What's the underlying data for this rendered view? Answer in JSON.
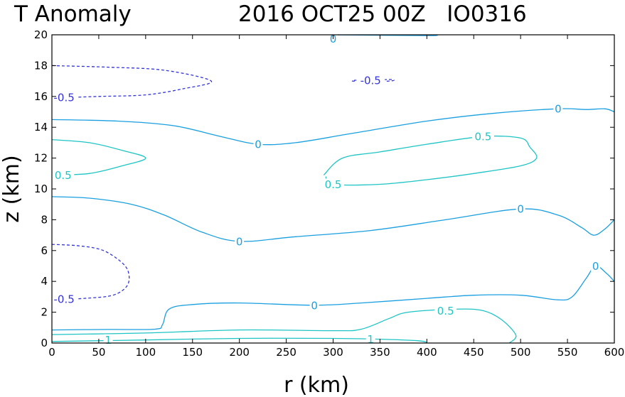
{
  "chart_data": {
    "type": "contour",
    "title_left": "T Anomaly",
    "title_right": "2016 OCT25 00Z   IO0316",
    "xlabel": "r (km)",
    "ylabel": "z (km)",
    "xlim": [
      0,
      600
    ],
    "ylim": [
      0,
      20
    ],
    "xticks": [
      0,
      50,
      100,
      150,
      200,
      250,
      300,
      350,
      400,
      450,
      500,
      550,
      600
    ],
    "yticks": [
      0,
      2,
      4,
      6,
      8,
      10,
      12,
      14,
      16,
      18,
      20
    ],
    "xtick_labels": [
      "0",
      "50",
      "100",
      "150",
      "200",
      "250",
      "300",
      "350",
      "400",
      "450",
      "500",
      "550",
      "600"
    ],
    "ytick_labels": [
      "0",
      "2",
      "4",
      "6",
      "8",
      "10",
      "12",
      "14",
      "16",
      "18",
      "20"
    ],
    "grid": false,
    "colors": {
      "neg": "#3333dd",
      "zero": "#1a9fe0",
      "pos": "#1fc4c4",
      "axis": "#000000"
    },
    "contours": [
      {
        "level": -0.5,
        "style": "dashed",
        "points": [
          [
            0,
            18.0
          ],
          [
            60,
            17.9
          ],
          [
            120,
            17.7
          ],
          [
            170,
            17.0
          ],
          [
            140,
            16.5
          ],
          [
            100,
            16.1
          ],
          [
            50,
            16.0
          ],
          [
            0,
            15.9
          ]
        ]
      },
      {
        "level": -0.5,
        "style": "dashed",
        "points": [
          [
            0,
            6.4
          ],
          [
            30,
            6.3
          ],
          [
            55,
            6.0
          ],
          [
            75,
            5.2
          ],
          [
            82,
            4.5
          ],
          [
            80,
            3.7
          ],
          [
            65,
            3.1
          ],
          [
            35,
            2.9
          ],
          [
            0,
            2.8
          ]
        ]
      },
      {
        "level": -0.5,
        "style": "dashed",
        "points": [
          [
            320,
            17.0
          ],
          [
            340,
            16.95
          ],
          [
            360,
            17.0
          ],
          [
            365,
            17.05
          ],
          [
            360,
            17.1
          ],
          [
            340,
            17.05
          ],
          [
            322,
            17.05
          ]
        ]
      },
      {
        "level": 0,
        "style": "solid",
        "points": [
          [
            300,
            20.0
          ],
          [
            400,
            19.95
          ],
          [
            410,
            20.0
          ]
        ]
      },
      {
        "level": 0,
        "style": "solid",
        "points": [
          [
            0,
            14.5
          ],
          [
            70,
            14.4
          ],
          [
            130,
            14.1
          ],
          [
            180,
            13.4
          ],
          [
            220,
            12.9
          ],
          [
            260,
            13.0
          ],
          [
            320,
            13.6
          ],
          [
            400,
            14.4
          ],
          [
            470,
            14.9
          ],
          [
            540,
            15.2
          ],
          [
            570,
            15.15
          ],
          [
            590,
            15.2
          ],
          [
            600,
            15.0
          ]
        ]
      },
      {
        "level": 0,
        "style": "solid",
        "points": [
          [
            0,
            9.5
          ],
          [
            40,
            9.4
          ],
          [
            85,
            9.0
          ],
          [
            120,
            8.3
          ],
          [
            160,
            7.2
          ],
          [
            200,
            6.6
          ],
          [
            260,
            6.9
          ],
          [
            340,
            7.3
          ],
          [
            420,
            8.0
          ],
          [
            500,
            8.7
          ],
          [
            540,
            8.3
          ],
          [
            565,
            7.5
          ],
          [
            578,
            7.0
          ],
          [
            590,
            7.4
          ],
          [
            600,
            8.0
          ]
        ]
      },
      {
        "level": 0,
        "style": "solid",
        "points": [
          [
            0,
            0.85
          ],
          [
            60,
            0.88
          ],
          [
            110,
            0.9
          ],
          [
            118,
            1.2
          ],
          [
            125,
            2.2
          ],
          [
            150,
            2.5
          ],
          [
            200,
            2.6
          ],
          [
            280,
            2.45
          ],
          [
            330,
            2.6
          ],
          [
            400,
            2.9
          ],
          [
            450,
            3.1
          ],
          [
            500,
            3.1
          ],
          [
            540,
            2.8
          ],
          [
            555,
            3.0
          ],
          [
            570,
            4.2
          ],
          [
            580,
            5.0
          ],
          [
            592,
            4.5
          ],
          [
            600,
            4.0
          ]
        ]
      },
      {
        "level": 0.5,
        "style": "solid",
        "points": [
          [
            0,
            13.2
          ],
          [
            40,
            13.0
          ],
          [
            75,
            12.5
          ],
          [
            100,
            12.0
          ],
          [
            75,
            11.5
          ],
          [
            40,
            11.0
          ],
          [
            0,
            10.9
          ]
        ]
      },
      {
        "level": 0.5,
        "style": "solid",
        "points": [
          [
            290,
            10.9
          ],
          [
            310,
            12.0
          ],
          [
            350,
            12.4
          ],
          [
            400,
            12.9
          ],
          [
            460,
            13.4
          ],
          [
            500,
            13.3
          ],
          [
            510,
            12.7
          ],
          [
            517,
            12.0
          ],
          [
            500,
            11.5
          ],
          [
            450,
            11.0
          ],
          [
            400,
            10.6
          ],
          [
            350,
            10.3
          ],
          [
            300,
            10.3
          ],
          [
            292,
            10.8
          ]
        ]
      },
      {
        "level": 0.5,
        "style": "solid",
        "points": [
          [
            0,
            0.55
          ],
          [
            100,
            0.65
          ],
          [
            200,
            0.85
          ],
          [
            300,
            0.8
          ],
          [
            330,
            0.9
          ],
          [
            360,
            1.6
          ],
          [
            380,
            2.0
          ],
          [
            430,
            2.2
          ],
          [
            460,
            2.1
          ],
          [
            480,
            1.5
          ],
          [
            495,
            0.5
          ],
          [
            488,
            0.0
          ]
        ]
      },
      {
        "level": 1,
        "style": "solid",
        "points": [
          [
            0,
            0.1
          ],
          [
            100,
            0.2
          ],
          [
            200,
            0.3
          ],
          [
            300,
            0.3
          ],
          [
            350,
            0.25
          ],
          [
            390,
            0.15
          ],
          [
            400,
            0.05
          ]
        ]
      }
    ],
    "contour_labels": [
      {
        "text": "0",
        "x": 300,
        "y": 19.75,
        "level": 0
      },
      {
        "text": "-0.5",
        "x": 13,
        "y": 15.95,
        "level": -0.5
      },
      {
        "text": "-0.5",
        "x": 340,
        "y": 17.05,
        "level": -0.5
      },
      {
        "text": "0",
        "x": 540,
        "y": 15.2,
        "level": 0
      },
      {
        "text": "0",
        "x": 220,
        "y": 12.9,
        "level": 0
      },
      {
        "text": "0.5",
        "x": 12,
        "y": 10.9,
        "level": 0.5
      },
      {
        "text": "0.5",
        "x": 460,
        "y": 13.4,
        "level": 0.5
      },
      {
        "text": "0.5",
        "x": 300,
        "y": 10.3,
        "level": 0.5
      },
      {
        "text": "0",
        "x": 500,
        "y": 8.7,
        "level": 0
      },
      {
        "text": "0",
        "x": 200,
        "y": 6.6,
        "level": 0
      },
      {
        "text": "0",
        "x": 580,
        "y": 5.0,
        "level": 0
      },
      {
        "text": "-0.5",
        "x": 13,
        "y": 2.85,
        "level": -0.5
      },
      {
        "text": "0",
        "x": 280,
        "y": 2.45,
        "level": 0
      },
      {
        "text": "0.5",
        "x": 420,
        "y": 2.1,
        "level": 0.5
      },
      {
        "text": "1",
        "x": 60,
        "y": 0.2,
        "level": 1
      },
      {
        "text": "1",
        "x": 340,
        "y": 0.25,
        "level": 1
      }
    ]
  }
}
